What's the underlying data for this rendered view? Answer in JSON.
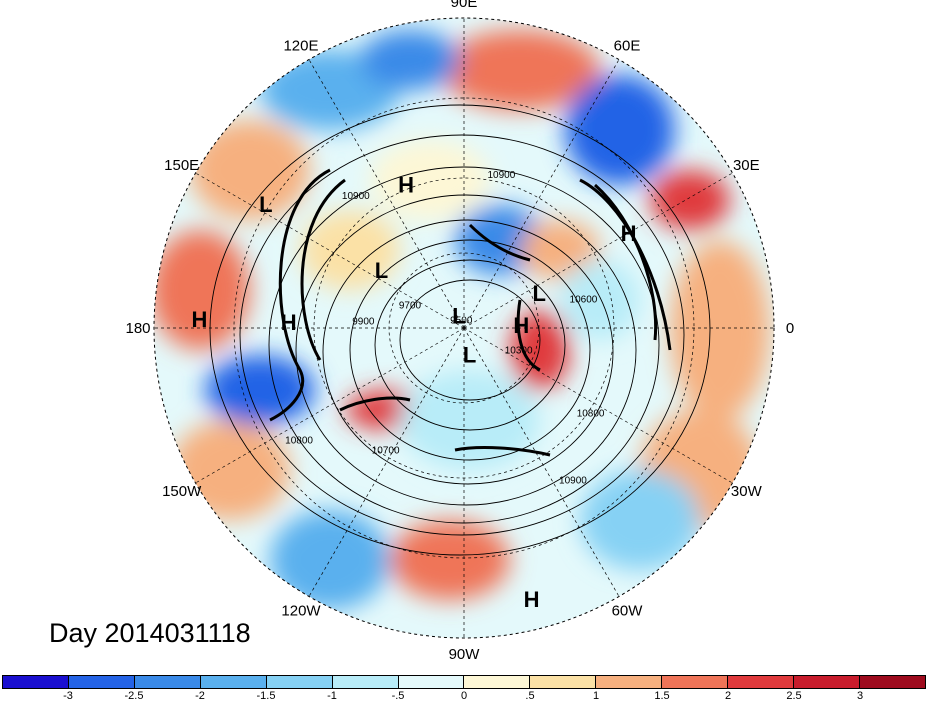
{
  "title": "Day 2014031118",
  "map": {
    "projection": "polar-stereographic-north",
    "longitude_labels": [
      {
        "text": "90E",
        "lon": 90
      },
      {
        "text": "60E",
        "lon": 60
      },
      {
        "text": "30E",
        "lon": 30
      },
      {
        "text": "0",
        "lon": 0
      },
      {
        "text": "30W",
        "lon": -30
      },
      {
        "text": "60W",
        "lon": -60
      },
      {
        "text": "90W",
        "lon": -90
      },
      {
        "text": "120W",
        "lon": -120
      },
      {
        "text": "150W",
        "lon": -150
      },
      {
        "text": "180",
        "lon": 180
      },
      {
        "text": "150E",
        "lon": 150
      },
      {
        "text": "120E",
        "lon": 120
      }
    ],
    "pressure_systems": [
      {
        "type": "H",
        "text": "H",
        "lon": 112,
        "lat": 37
      },
      {
        "type": "L",
        "text": "L",
        "lon": 148,
        "lat": 16
      },
      {
        "type": "H",
        "text": "H",
        "lon": 178,
        "lat": 9
      },
      {
        "type": "H",
        "text": "H",
        "lon": 178,
        "lat": 31
      },
      {
        "type": "L",
        "text": "L",
        "lon": 145,
        "lat": 54
      },
      {
        "type": "L",
        "text": "L",
        "lon": 112,
        "lat": 85
      },
      {
        "type": "L",
        "text": "L",
        "lon": 25,
        "lat": 60
      },
      {
        "type": "H",
        "text": "H",
        "lon": 30,
        "lat": 27
      },
      {
        "type": "H",
        "text": "H",
        "lon": 3,
        "lat": 69
      },
      {
        "type": "L",
        "text": "L",
        "lon": -78,
        "lat": 80
      },
      {
        "type": "H",
        "text": "H",
        "lon": -76,
        "lat": 6
      }
    ],
    "contour_labels": [
      {
        "text": "10900",
        "lon": 76,
        "lat": 37
      },
      {
        "text": "10900",
        "lon": 130,
        "lat": 33
      },
      {
        "text": "9700",
        "lon": 160,
        "lat": 69
      },
      {
        "text": "9500",
        "lon": 120,
        "lat": 88
      },
      {
        "text": "9900",
        "lon": 178,
        "lat": 54
      },
      {
        "text": "10600",
        "lon": 12,
        "lat": 47
      },
      {
        "text": "10300",
        "lon": -25,
        "lat": 68
      },
      {
        "text": "10800",
        "lon": -35,
        "lat": 37
      },
      {
        "text": "10900",
        "lon": -55,
        "lat": 27
      },
      {
        "text": "10800",
        "lon": -145,
        "lat": 24
      },
      {
        "text": "10700",
        "lon": -122,
        "lat": 39
      }
    ]
  },
  "colorbar": {
    "ticks": [
      "-3",
      "-2.5",
      "-2",
      "-1.5",
      "-1",
      "-.5",
      "0",
      ".5",
      "1",
      "1.5",
      "2",
      "2.5",
      "3"
    ],
    "colors": [
      "#1a0fd0",
      "#2463e6",
      "#3a8ae8",
      "#5ab0ee",
      "#86d1f4",
      "#b8ecf8",
      "#e4f9fb",
      "#fdf7d6",
      "#fbe1a6",
      "#f6b07f",
      "#ef7458",
      "#e03a3c",
      "#c81c2c",
      "#9e0b1e"
    ]
  }
}
